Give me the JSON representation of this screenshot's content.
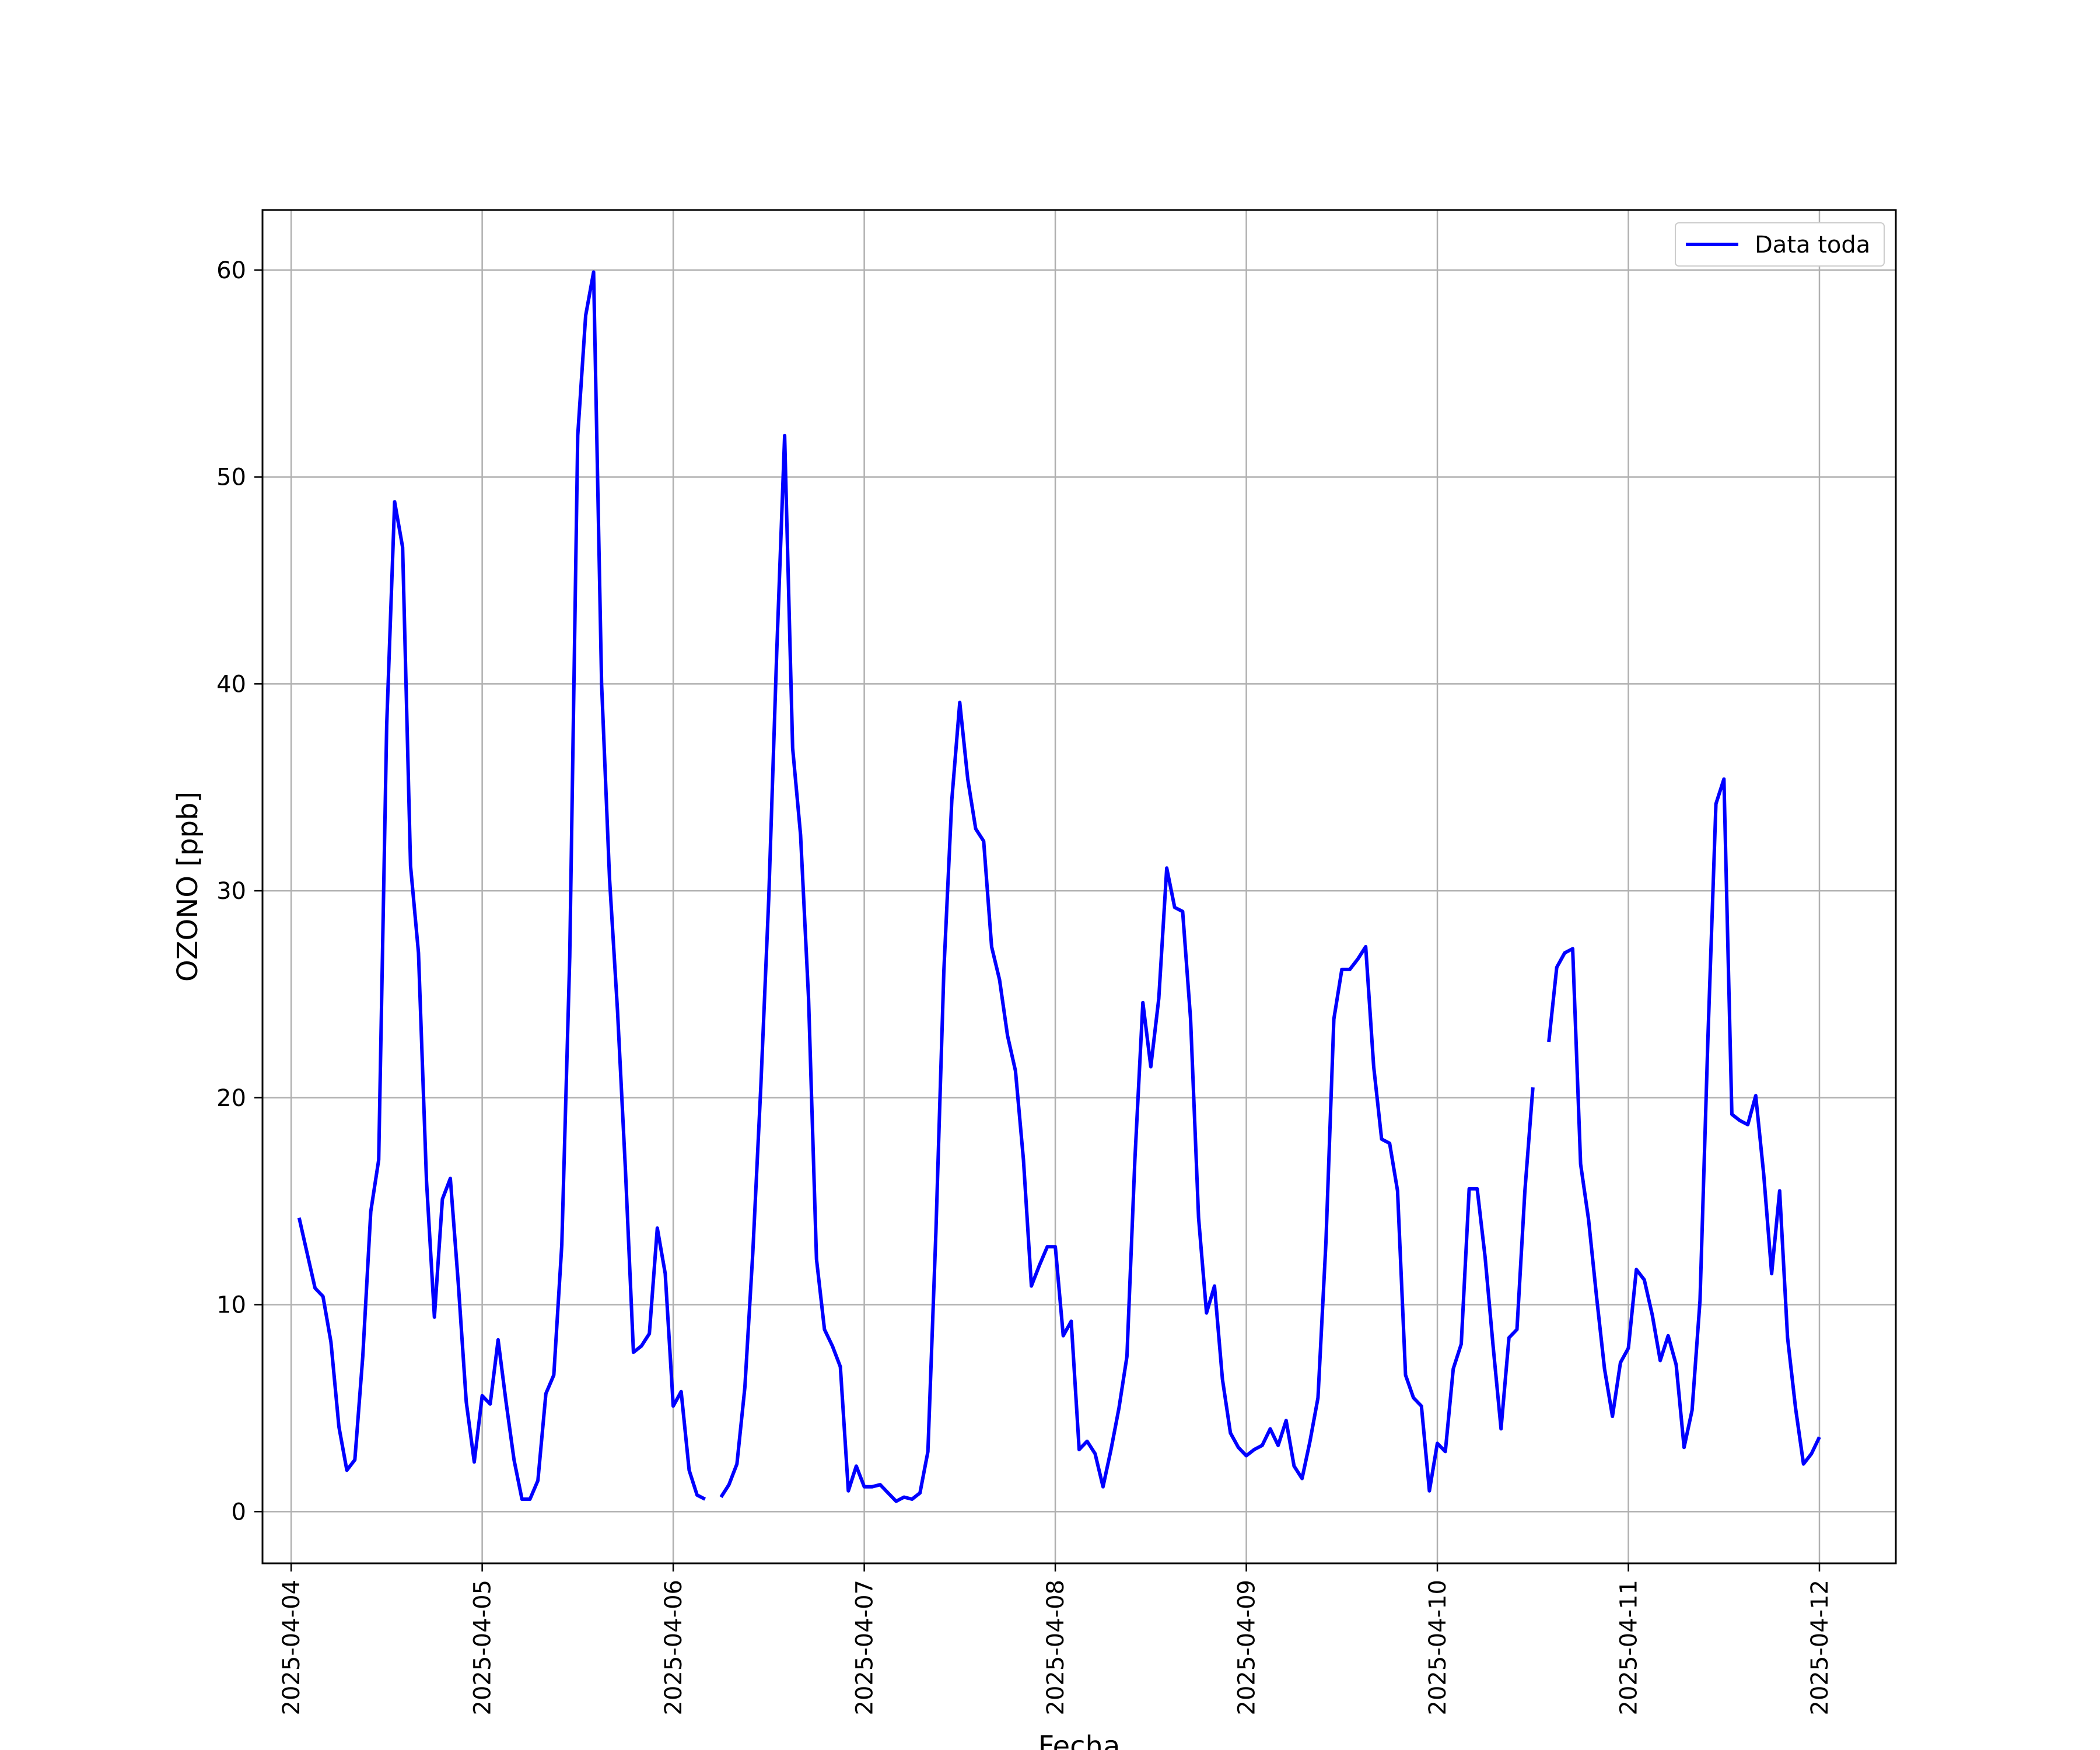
{
  "chart_data": {
    "type": "line",
    "xlabel": "Fecha",
    "ylabel": "OZONO [ppb]",
    "xlim": [
      "2025-04-03T20:24",
      "2025-04-12T09:36"
    ],
    "ylim": [
      -2.5,
      62.9
    ],
    "grid": true,
    "legend_position": "top-right",
    "colors": {
      "line": "#0000ff",
      "grid": "#b0b0b0",
      "axes": "#000000"
    },
    "x_ticks": [
      "2025-04-04",
      "2025-04-05",
      "2025-04-06",
      "2025-04-07",
      "2025-04-08",
      "2025-04-09",
      "2025-04-10",
      "2025-04-11",
      "2025-04-12"
    ],
    "y_ticks": [
      0,
      10,
      20,
      30,
      40,
      50,
      60
    ],
    "series": [
      {
        "name": "Data toda",
        "color": "#0000ff",
        "segments": [
          [
            [
              "2025-04-04T01:00",
              14.2
            ],
            [
              "2025-04-04T02:00",
              12.5
            ],
            [
              "2025-04-04T03:00",
              10.8
            ],
            [
              "2025-04-04T04:00",
              10.4
            ],
            [
              "2025-04-04T05:00",
              8.2
            ],
            [
              "2025-04-04T06:00",
              4.1
            ],
            [
              "2025-04-04T07:00",
              2.0
            ],
            [
              "2025-04-04T08:00",
              2.5
            ],
            [
              "2025-04-04T09:00",
              7.5
            ],
            [
              "2025-04-04T10:00",
              14.5
            ],
            [
              "2025-04-04T11:00",
              17.0
            ],
            [
              "2025-04-04T12:00",
              38.0
            ],
            [
              "2025-04-04T13:00",
              48.8
            ],
            [
              "2025-04-04T14:00",
              46.6
            ],
            [
              "2025-04-04T15:00",
              31.2
            ],
            [
              "2025-04-04T16:00",
              27.0
            ],
            [
              "2025-04-04T17:00",
              16.0
            ],
            [
              "2025-04-04T18:00",
              9.4
            ],
            [
              "2025-04-04T19:00",
              15.1
            ],
            [
              "2025-04-04T20:00",
              16.1
            ],
            [
              "2025-04-04T21:00",
              11.0
            ],
            [
              "2025-04-04T22:00",
              5.3
            ],
            [
              "2025-04-04T23:00",
              2.4
            ],
            [
              "2025-04-05T00:00",
              5.6
            ],
            [
              "2025-04-05T01:00",
              5.2
            ],
            [
              "2025-04-05T02:00",
              8.3
            ],
            [
              "2025-04-05T03:00",
              5.3
            ],
            [
              "2025-04-05T04:00",
              2.5
            ],
            [
              "2025-04-05T05:00",
              0.6
            ],
            [
              "2025-04-05T06:00",
              0.6
            ],
            [
              "2025-04-05T07:00",
              1.5
            ],
            [
              "2025-04-05T08:00",
              5.7
            ],
            [
              "2025-04-05T09:00",
              6.6
            ],
            [
              "2025-04-05T10:00",
              12.9
            ],
            [
              "2025-04-05T11:00",
              26.8
            ],
            [
              "2025-04-05T12:00",
              52.0
            ],
            [
              "2025-04-05T13:00",
              57.8
            ],
            [
              "2025-04-05T14:00",
              59.9
            ],
            [
              "2025-04-05T15:00",
              40.0
            ],
            [
              "2025-04-05T16:00",
              30.6
            ],
            [
              "2025-04-05T17:00",
              24.2
            ],
            [
              "2025-04-05T18:00",
              16.5
            ],
            [
              "2025-04-05T19:00",
              7.7
            ],
            [
              "2025-04-05T20:00",
              8.0
            ],
            [
              "2025-04-05T21:00",
              8.6
            ],
            [
              "2025-04-05T22:00",
              13.7
            ],
            [
              "2025-04-05T23:00",
              11.5
            ],
            [
              "2025-04-06T00:00",
              5.1
            ],
            [
              "2025-04-06T01:00",
              5.8
            ],
            [
              "2025-04-06T02:00",
              2.0
            ],
            [
              "2025-04-06T03:00",
              0.8
            ],
            [
              "2025-04-06T04:00",
              0.6
            ]
          ],
          [
            [
              "2025-04-06T06:00",
              0.7
            ],
            [
              "2025-04-06T07:00",
              1.3
            ],
            [
              "2025-04-06T08:00",
              2.3
            ],
            [
              "2025-04-06T09:00",
              6.0
            ],
            [
              "2025-04-06T10:00",
              12.5
            ],
            [
              "2025-04-06T11:00",
              20.5
            ],
            [
              "2025-04-06T12:00",
              29.6
            ],
            [
              "2025-04-06T13:00",
              41.5
            ],
            [
              "2025-04-06T14:00",
              52.0
            ],
            [
              "2025-04-06T15:00",
              36.9
            ],
            [
              "2025-04-06T16:00",
              32.7
            ],
            [
              "2025-04-06T17:00",
              24.8
            ],
            [
              "2025-04-06T18:00",
              12.2
            ],
            [
              "2025-04-06T19:00",
              8.8
            ],
            [
              "2025-04-06T20:00",
              8.0
            ],
            [
              "2025-04-06T21:00",
              7.0
            ],
            [
              "2025-04-06T22:00",
              1.0
            ],
            [
              "2025-04-06T23:00",
              2.2
            ],
            [
              "2025-04-07T00:00",
              1.2
            ],
            [
              "2025-04-07T01:00",
              1.2
            ],
            [
              "2025-04-07T02:00",
              1.3
            ],
            [
              "2025-04-07T03:00",
              0.9
            ],
            [
              "2025-04-07T04:00",
              0.5
            ],
            [
              "2025-04-07T05:00",
              0.7
            ],
            [
              "2025-04-07T06:00",
              0.6
            ],
            [
              "2025-04-07T07:00",
              0.9
            ],
            [
              "2025-04-07T08:00",
              2.9
            ],
            [
              "2025-04-07T09:00",
              13.5
            ],
            [
              "2025-04-07T10:00",
              26.1
            ],
            [
              "2025-04-07T11:00",
              34.4
            ],
            [
              "2025-04-07T12:00",
              39.1
            ],
            [
              "2025-04-07T13:00",
              35.4
            ],
            [
              "2025-04-07T14:00",
              33.0
            ],
            [
              "2025-04-07T15:00",
              32.4
            ],
            [
              "2025-04-07T16:00",
              27.3
            ],
            [
              "2025-04-07T17:00",
              25.7
            ],
            [
              "2025-04-07T18:00",
              23.0
            ],
            [
              "2025-04-07T19:00",
              21.3
            ],
            [
              "2025-04-07T20:00",
              17.0
            ],
            [
              "2025-04-07T21:00",
              10.9
            ],
            [
              "2025-04-07T22:00",
              11.9
            ],
            [
              "2025-04-07T23:00",
              12.8
            ],
            [
              "2025-04-08T00:00",
              12.8
            ],
            [
              "2025-04-08T01:00",
              8.5
            ],
            [
              "2025-04-08T02:00",
              9.2
            ],
            [
              "2025-04-08T03:00",
              3.0
            ],
            [
              "2025-04-08T04:00",
              3.4
            ],
            [
              "2025-04-08T05:00",
              2.8
            ],
            [
              "2025-04-08T06:00",
              1.2
            ],
            [
              "2025-04-08T07:00",
              3.0
            ],
            [
              "2025-04-08T08:00",
              5.0
            ],
            [
              "2025-04-08T09:00",
              7.5
            ],
            [
              "2025-04-08T10:00",
              17.0
            ],
            [
              "2025-04-08T11:00",
              24.6
            ],
            [
              "2025-04-08T12:00",
              21.5
            ],
            [
              "2025-04-08T13:00",
              24.8
            ],
            [
              "2025-04-08T14:00",
              31.1
            ],
            [
              "2025-04-08T15:00",
              29.2
            ],
            [
              "2025-04-08T16:00",
              29.0
            ],
            [
              "2025-04-08T17:00",
              23.8
            ],
            [
              "2025-04-08T18:00",
              14.2
            ],
            [
              "2025-04-08T19:00",
              9.6
            ],
            [
              "2025-04-08T20:00",
              10.9
            ],
            [
              "2025-04-08T21:00",
              6.4
            ],
            [
              "2025-04-08T22:00",
              3.8
            ],
            [
              "2025-04-08T23:00",
              3.1
            ],
            [
              "2025-04-09T00:00",
              2.7
            ],
            [
              "2025-04-09T01:00",
              3.0
            ],
            [
              "2025-04-09T02:00",
              3.2
            ],
            [
              "2025-04-09T03:00",
              4.0
            ],
            [
              "2025-04-09T04:00",
              3.2
            ],
            [
              "2025-04-09T05:00",
              4.4
            ],
            [
              "2025-04-09T06:00",
              2.2
            ],
            [
              "2025-04-09T07:00",
              1.6
            ],
            [
              "2025-04-09T08:00",
              3.4
            ],
            [
              "2025-04-09T09:00",
              5.5
            ],
            [
              "2025-04-09T10:00",
              13.0
            ],
            [
              "2025-04-09T11:00",
              23.8
            ],
            [
              "2025-04-09T12:00",
              26.2
            ],
            [
              "2025-04-09T13:00",
              26.2
            ],
            [
              "2025-04-09T14:00",
              26.7
            ],
            [
              "2025-04-09T15:00",
              27.3
            ],
            [
              "2025-04-09T16:00",
              21.5
            ],
            [
              "2025-04-09T17:00",
              18.0
            ],
            [
              "2025-04-09T18:00",
              17.8
            ],
            [
              "2025-04-09T19:00",
              15.5
            ],
            [
              "2025-04-09T20:00",
              6.6
            ],
            [
              "2025-04-09T21:00",
              5.5
            ],
            [
              "2025-04-09T22:00",
              5.1
            ],
            [
              "2025-04-09T23:00",
              1.0
            ],
            [
              "2025-04-10T00:00",
              3.3
            ],
            [
              "2025-04-10T01:00",
              2.9
            ],
            [
              "2025-04-10T02:00",
              6.9
            ],
            [
              "2025-04-10T03:00",
              8.1
            ],
            [
              "2025-04-10T04:00",
              15.6
            ],
            [
              "2025-04-10T05:00",
              15.6
            ],
            [
              "2025-04-10T06:00",
              12.3
            ],
            [
              "2025-04-10T07:00",
              8.0
            ],
            [
              "2025-04-10T08:00",
              4.0
            ],
            [
              "2025-04-10T09:00",
              8.4
            ],
            [
              "2025-04-10T10:00",
              8.8
            ],
            [
              "2025-04-10T11:00",
              15.5
            ],
            [
              "2025-04-10T12:00",
              20.5
            ]
          ],
          [
            [
              "2025-04-10T14:00",
              22.7
            ],
            [
              "2025-04-10T15:00",
              26.3
            ],
            [
              "2025-04-10T16:00",
              27.0
            ],
            [
              "2025-04-10T17:00",
              27.2
            ],
            [
              "2025-04-10T18:00",
              16.8
            ],
            [
              "2025-04-10T19:00",
              14.1
            ],
            [
              "2025-04-10T20:00",
              10.4
            ],
            [
              "2025-04-10T21:00",
              6.9
            ],
            [
              "2025-04-10T22:00",
              4.6
            ],
            [
              "2025-04-10T23:00",
              7.2
            ],
            [
              "2025-04-11T00:00",
              7.9
            ],
            [
              "2025-04-11T01:00",
              11.7
            ],
            [
              "2025-04-11T02:00",
              11.2
            ],
            [
              "2025-04-11T03:00",
              9.5
            ],
            [
              "2025-04-11T04:00",
              7.3
            ],
            [
              "2025-04-11T05:00",
              8.5
            ],
            [
              "2025-04-11T06:00",
              7.1
            ],
            [
              "2025-04-11T07:00",
              3.1
            ],
            [
              "2025-04-11T08:00",
              4.9
            ],
            [
              "2025-04-11T09:00",
              10.2
            ],
            [
              "2025-04-11T10:00",
              23.0
            ],
            [
              "2025-04-11T11:00",
              34.2
            ],
            [
              "2025-04-11T12:00",
              35.4
            ],
            [
              "2025-04-11T13:00",
              19.2
            ],
            [
              "2025-04-11T14:00",
              18.9
            ],
            [
              "2025-04-11T15:00",
              18.7
            ],
            [
              "2025-04-11T16:00",
              20.1
            ],
            [
              "2025-04-11T17:00",
              16.3
            ],
            [
              "2025-04-11T18:00",
              11.5
            ],
            [
              "2025-04-11T19:00",
              15.5
            ],
            [
              "2025-04-11T20:00",
              8.4
            ],
            [
              "2025-04-11T21:00",
              5.0
            ],
            [
              "2025-04-11T22:00",
              2.3
            ],
            [
              "2025-04-11T23:00",
              2.8
            ],
            [
              "2025-04-12T00:00",
              3.6
            ]
          ]
        ]
      }
    ]
  }
}
